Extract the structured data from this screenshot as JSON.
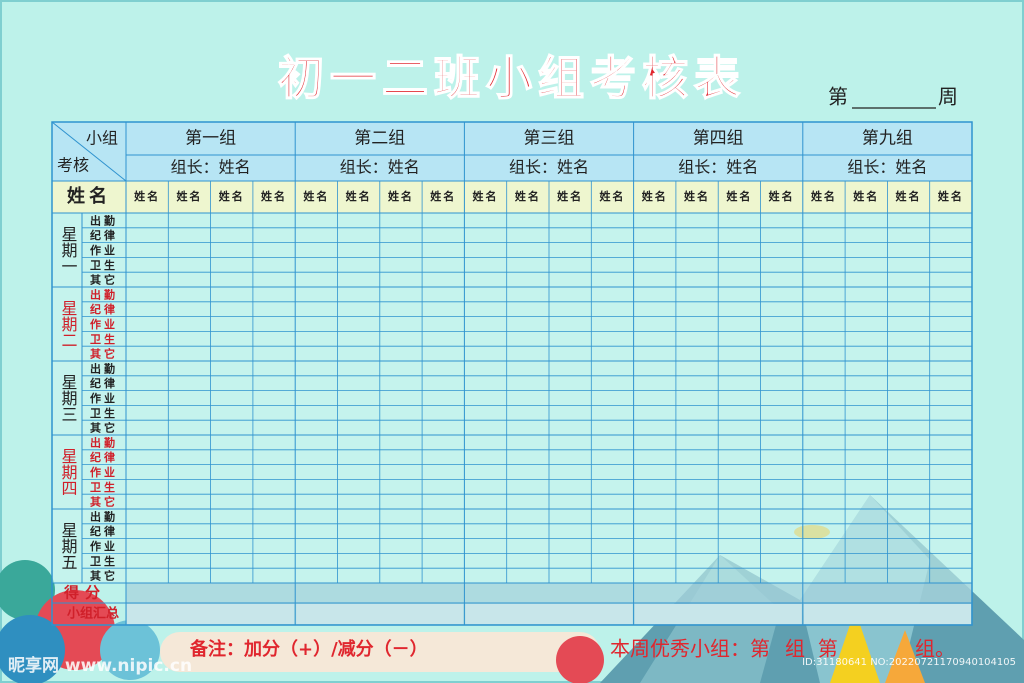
{
  "header": {
    "title": "初一二班小组考核表",
    "week_prefix": "第",
    "week_suffix": "周"
  },
  "table": {
    "corner_top": "小组",
    "corner_bottom": "考核",
    "name_label": "姓名",
    "groups": [
      {
        "name": "第一组",
        "leader": "组长：姓名",
        "members": [
          "姓名",
          "姓名",
          "姓名",
          "姓名"
        ]
      },
      {
        "name": "第二组",
        "leader": "组长：姓名",
        "members": [
          "姓名",
          "姓名",
          "姓名",
          "姓名"
        ]
      },
      {
        "name": "第三组",
        "leader": "组长：姓名",
        "members": [
          "姓名",
          "姓名",
          "姓名",
          "姓名"
        ]
      },
      {
        "name": "第四组",
        "leader": "组长：姓名",
        "members": [
          "姓名",
          "姓名",
          "姓名",
          "姓名"
        ]
      },
      {
        "name": "第九组",
        "leader": "组长：姓名",
        "members": [
          "姓名",
          "姓名",
          "姓名",
          "姓名"
        ]
      }
    ],
    "days": [
      {
        "day": "星期一",
        "color": "#222222",
        "items": [
          "出勤",
          "纪律",
          "作业",
          "卫生",
          "其它"
        ]
      },
      {
        "day": "星期二",
        "color": "#d0202a",
        "items": [
          "出勤",
          "纪律",
          "作业",
          "卫生",
          "其它"
        ]
      },
      {
        "day": "星期三",
        "color": "#222222",
        "items": [
          "出勤",
          "纪律",
          "作业",
          "卫生",
          "其它"
        ]
      },
      {
        "day": "星期四",
        "color": "#d0202a",
        "items": [
          "出勤",
          "纪律",
          "作业",
          "卫生",
          "其它"
        ]
      },
      {
        "day": "星期五",
        "color": "#222222",
        "items": [
          "出勤",
          "纪律",
          "作业",
          "卫生",
          "其它"
        ]
      }
    ],
    "score_label": "得分",
    "summary_label": "小组汇总"
  },
  "footer": {
    "note": "备注：加分（+）/减分（－）",
    "best_prefix": "本周优秀小组：第",
    "best_mid": "组  第",
    "best_suffix": "组。"
  },
  "watermark": {
    "site": "昵享网 www.nipic.cn",
    "id": "ID:31180641 NO:20220721170940104105"
  }
}
